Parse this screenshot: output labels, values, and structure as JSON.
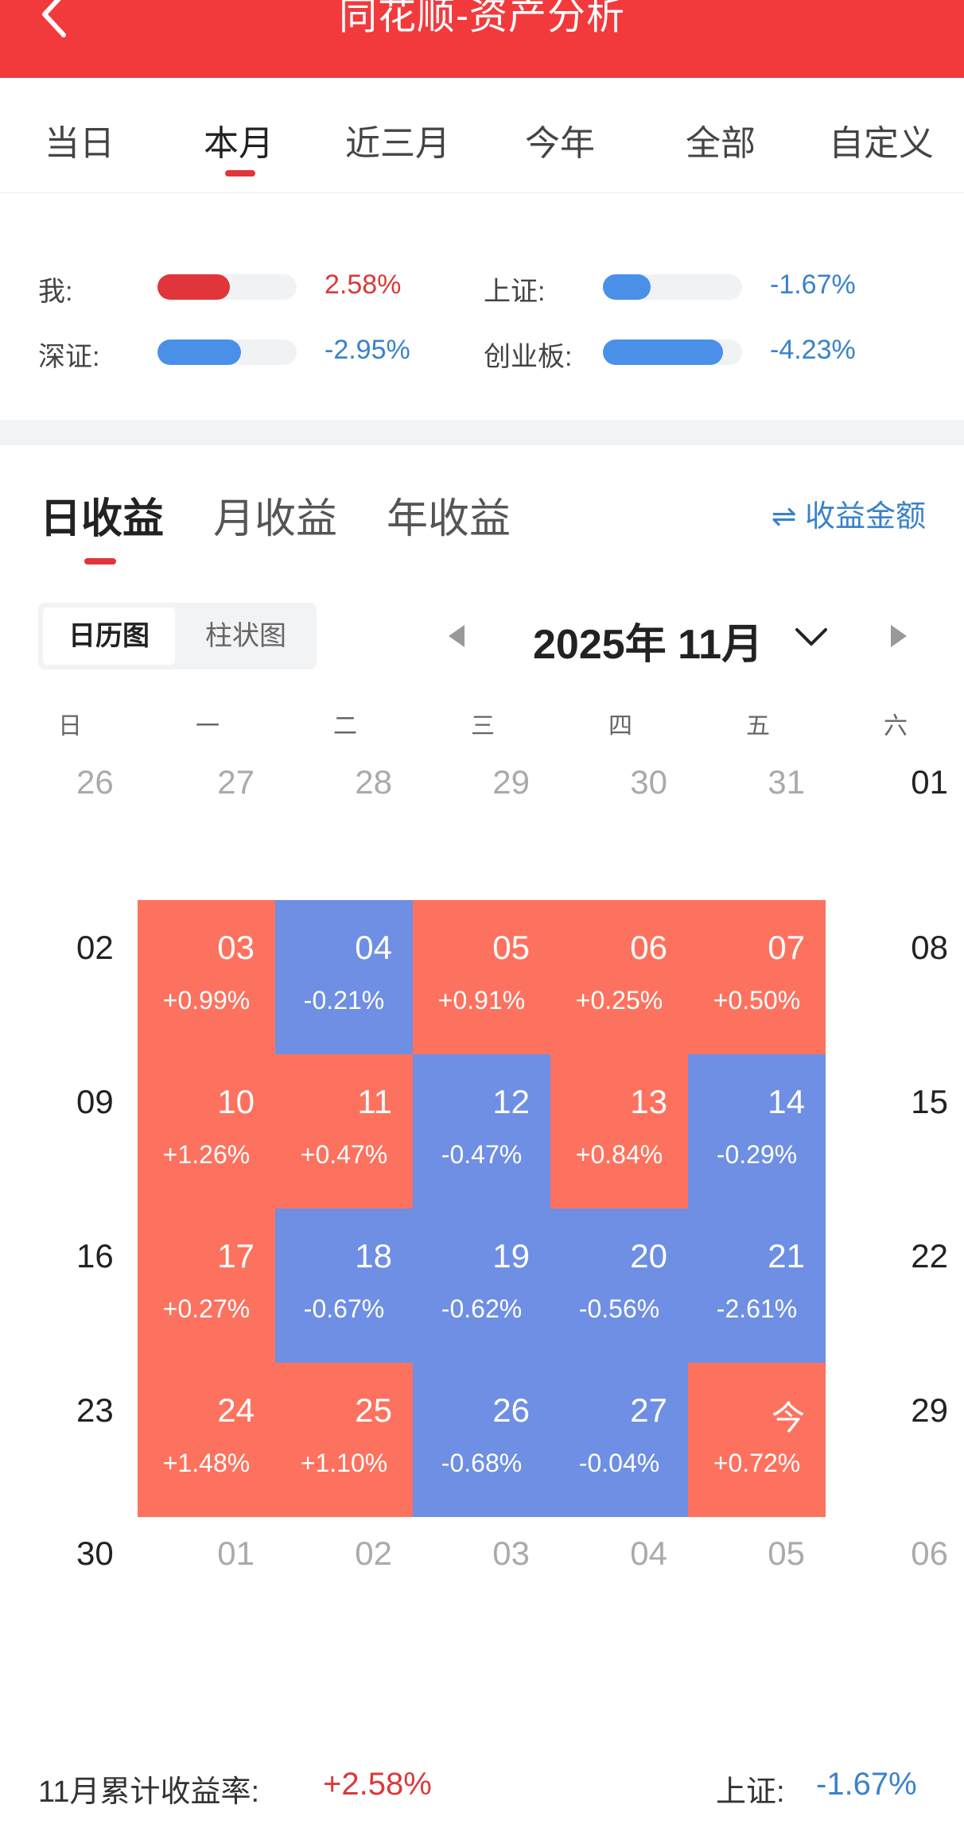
{
  "header": {
    "title": "同花顺-资产分析"
  },
  "period_tabs": [
    "当日",
    "本月",
    "近三月",
    "今年",
    "全部",
    "自定义"
  ],
  "active_period": 1,
  "comparison": [
    {
      "label": "我:",
      "value": "2.58%",
      "fill": 0.52,
      "color": "#e0353a",
      "text_color": "#d93a3a"
    },
    {
      "label": "上证:",
      "value": "-1.67%",
      "fill": 0.34,
      "color": "#4a90e8",
      "text_color": "#3b82c8"
    },
    {
      "label": "深证:",
      "value": "-2.95%",
      "fill": 0.6,
      "color": "#4a90e8",
      "text_color": "#3b82c8"
    },
    {
      "label": "创业板:",
      "value": "-4.23%",
      "fill": 0.86,
      "color": "#4a90e8",
      "text_color": "#3b82c8"
    }
  ],
  "profit_tabs": [
    "日收益",
    "月收益",
    "年收益"
  ],
  "amount_toggle": "⇌ 收益金额",
  "view_toggle": [
    "日历图",
    "柱状图"
  ],
  "month_label": "2025年 11月",
  "weekdays": [
    "日",
    "一",
    "二",
    "三",
    "四",
    "五",
    "六"
  ],
  "calendar": [
    [
      {
        "d": "26",
        "t": "grey"
      },
      {
        "d": "27",
        "t": "grey"
      },
      {
        "d": "28",
        "t": "grey"
      },
      {
        "d": "29",
        "t": "grey"
      },
      {
        "d": "30",
        "t": "grey"
      },
      {
        "d": "31",
        "t": "grey"
      },
      {
        "d": "01",
        "t": "plain"
      }
    ],
    [
      {
        "d": "02",
        "t": "plain"
      },
      {
        "d": "03",
        "t": "up",
        "r": "+0.99%"
      },
      {
        "d": "04",
        "t": "down",
        "r": "-0.21%"
      },
      {
        "d": "05",
        "t": "up",
        "r": "+0.91%"
      },
      {
        "d": "06",
        "t": "up",
        "r": "+0.25%"
      },
      {
        "d": "07",
        "t": "up",
        "r": "+0.50%"
      },
      {
        "d": "08",
        "t": "plain"
      }
    ],
    [
      {
        "d": "09",
        "t": "plain"
      },
      {
        "d": "10",
        "t": "up",
        "r": "+1.26%"
      },
      {
        "d": "11",
        "t": "up",
        "r": "+0.47%"
      },
      {
        "d": "12",
        "t": "down",
        "r": "-0.47%"
      },
      {
        "d": "13",
        "t": "up",
        "r": "+0.84%"
      },
      {
        "d": "14",
        "t": "down",
        "r": "-0.29%"
      },
      {
        "d": "15",
        "t": "plain"
      }
    ],
    [
      {
        "d": "16",
        "t": "plain"
      },
      {
        "d": "17",
        "t": "up",
        "r": "+0.27%"
      },
      {
        "d": "18",
        "t": "down",
        "r": "-0.67%"
      },
      {
        "d": "19",
        "t": "down",
        "r": "-0.62%"
      },
      {
        "d": "20",
        "t": "down",
        "r": "-0.56%"
      },
      {
        "d": "21",
        "t": "down",
        "r": "-2.61%"
      },
      {
        "d": "22",
        "t": "plain"
      }
    ],
    [
      {
        "d": "23",
        "t": "plain"
      },
      {
        "d": "24",
        "t": "up",
        "r": "+1.48%"
      },
      {
        "d": "25",
        "t": "up",
        "r": "+1.10%"
      },
      {
        "d": "26",
        "t": "down",
        "r": "-0.68%"
      },
      {
        "d": "27",
        "t": "down",
        "r": "-0.04%"
      },
      {
        "d": "今",
        "t": "up",
        "r": "+0.72%"
      },
      {
        "d": "29",
        "t": "plain"
      }
    ],
    [
      {
        "d": "30",
        "t": "plain"
      },
      {
        "d": "01",
        "t": "grey"
      },
      {
        "d": "02",
        "t": "grey"
      },
      {
        "d": "03",
        "t": "grey"
      },
      {
        "d": "04",
        "t": "grey"
      },
      {
        "d": "05",
        "t": "grey"
      },
      {
        "d": "06",
        "t": "grey"
      }
    ]
  ],
  "footer": {
    "label": "11月累计收益率:",
    "value": "+2.58%",
    "bench_label": "上证:",
    "bench_value": "-1.67%"
  },
  "colors": {
    "up": "#fd725f",
    "down": "#6e8fe3",
    "accent": "#f23a3d"
  }
}
